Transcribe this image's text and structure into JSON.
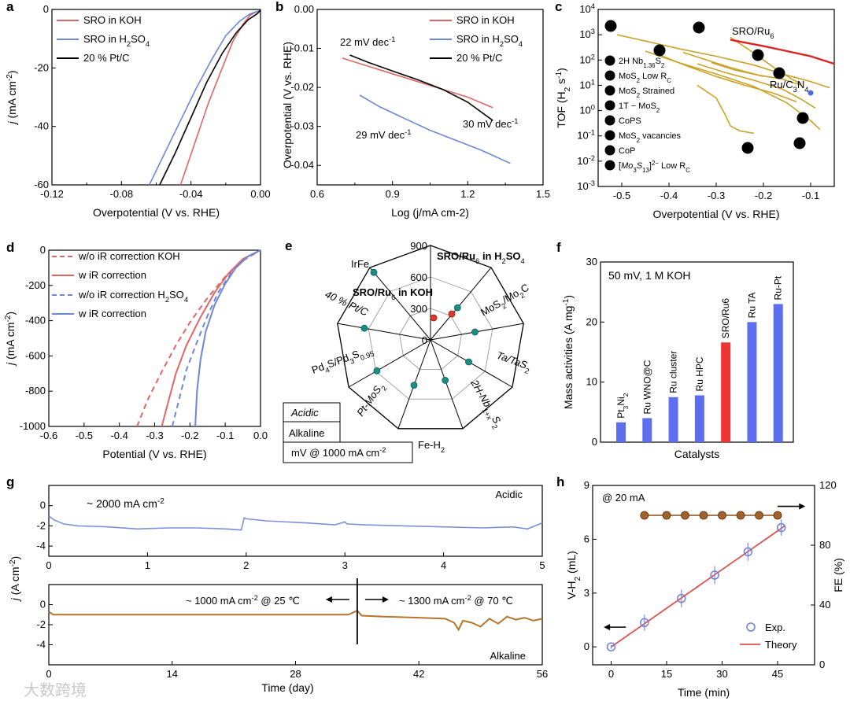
{
  "colors": {
    "red": "#e06666",
    "blue": "#6f86d6",
    "black": "#000000",
    "gold": "#c9a227",
    "teal": "#1a8f85",
    "bar_blue": "#5c6ff0",
    "bar_red": "#ee3333",
    "brown": "#b8732a",
    "bead": "#8a4b18"
  },
  "watermark": "大数跨境",
  "chart_data": [
    {
      "id": "a",
      "panel_label": "a",
      "type": "line",
      "xlabel": "Overpotential (V vs. RHE)",
      "ylabel": "j (mA cm-2)",
      "xlim": [
        -0.12,
        0
      ],
      "ylim": [
        -60,
        0
      ],
      "xticks": [
        "-0.12",
        "-0.08",
        "-0.04",
        "0.00"
      ],
      "yticks": [
        "0",
        "-20",
        "-40",
        "-60"
      ],
      "series": [
        {
          "name": "SRO in KOH",
          "color": "#e06666",
          "x": [
            -0.046,
            -0.038,
            -0.03,
            -0.022,
            -0.016,
            -0.01,
            -0.006,
            -0.003,
            0
          ],
          "y": [
            -60,
            -46,
            -32,
            -20,
            -11,
            -5,
            -2,
            -1,
            -0.3
          ]
        },
        {
          "name": "SRO in H2SO4",
          "color": "#6f86d6",
          "x": [
            -0.064,
            -0.055,
            -0.046,
            -0.037,
            -0.028,
            -0.02,
            -0.012,
            -0.006,
            0
          ],
          "y": [
            -60,
            -49,
            -38,
            -27,
            -17,
            -9,
            -4,
            -1.5,
            -0.3
          ]
        },
        {
          "name": "20 % Pt/C",
          "color": "#000000",
          "x": [
            -0.058,
            -0.049,
            -0.04,
            -0.031,
            -0.022,
            -0.014,
            -0.007,
            -0.002,
            0
          ],
          "y": [
            -60,
            -49,
            -37,
            -25,
            -15,
            -8,
            -3.5,
            -1.5,
            -0.3
          ]
        }
      ]
    },
    {
      "id": "b",
      "panel_label": "b",
      "type": "line",
      "xlabel": "Log (j/mA cm-2)",
      "ylabel": "Overpotential (V vs. RHE)",
      "xlim": [
        0.6,
        1.5
      ],
      "ylim": [
        -0.045,
        0
      ],
      "xticks": [
        "0.6",
        "0.9",
        "1.2",
        "1.5"
      ],
      "yticks": [
        "0.00",
        "-0.01",
        "-0.02",
        "-0.03",
        "-0.04"
      ],
      "annotations": [
        "22 mV dec-1",
        "29 mV dec-1",
        "30 mV dec-1"
      ],
      "series": [
        {
          "name": "SRO in KOH",
          "color": "#e06666",
          "x": [
            0.7,
            0.8,
            0.9,
            1.0,
            1.1,
            1.2,
            1.3
          ],
          "y": [
            -0.0125,
            -0.0145,
            -0.0165,
            -0.0185,
            -0.0205,
            -0.0225,
            -0.0252
          ]
        },
        {
          "name": "SRO in H2SO4",
          "color": "#6f86d6",
          "x": [
            0.77,
            0.85,
            0.95,
            1.05,
            1.15,
            1.25,
            1.37
          ],
          "y": [
            -0.022,
            -0.025,
            -0.028,
            -0.031,
            -0.0335,
            -0.036,
            -0.0395
          ]
        },
        {
          "name": "20 % Pt/C",
          "color": "#000000",
          "x": [
            0.73,
            0.8,
            0.9,
            1.0,
            1.1,
            1.2,
            1.3
          ],
          "y": [
            -0.0117,
            -0.0135,
            -0.0158,
            -0.018,
            -0.0205,
            -0.0238,
            -0.0285
          ]
        }
      ]
    },
    {
      "id": "c",
      "panel_label": "c",
      "type": "line",
      "xlabel": "Overpotential (V vs. RHE)",
      "ylabel": "TOF (H2 s-1)",
      "xlim": [
        -0.55,
        -0.05
      ],
      "ylim_log10": [
        -3,
        4
      ],
      "yscale": "log",
      "xticks": [
        "-0.5",
        "-0.4",
        "-0.3",
        "-0.2",
        "-0.1"
      ],
      "yticks": [
        "10^4",
        "10^3",
        "10^2",
        "10^1",
        "10^0",
        "10^-1",
        "10^-2",
        "10^-3"
      ],
      "highlight": {
        "name": "SRO/Ru6",
        "color": "#dd2222",
        "x": [
          -0.27,
          -0.2,
          -0.15,
          -0.1,
          -0.05
        ],
        "log10y": [
          2.8,
          2.55,
          2.35,
          2.15,
          1.85
        ]
      },
      "point": {
        "name": "Ru/C3N4",
        "x": -0.1,
        "log10y": 0.7
      },
      "references": [
        {
          "id": "1",
          "text": "2H Nb1.36S2",
          "x": [
            -0.51,
            -0.45,
            -0.38,
            -0.3,
            -0.22,
            -0.16,
            -0.1,
            -0.06
          ],
          "log10y": [
            3.0,
            2.75,
            2.45,
            2.15,
            1.8,
            1.45,
            1.15,
            0.9
          ]
        },
        {
          "id": "2",
          "text": "MoS2 Low RC",
          "x": [
            -0.27,
            -0.23,
            -0.2,
            -0.17,
            -0.14,
            -0.12
          ],
          "log10y": [
            2.9,
            2.4,
            2.0,
            1.6,
            1.25,
            1.05
          ]
        },
        {
          "id": "3",
          "text": "MoS2 Strained",
          "x": [
            -0.37,
            -0.32,
            -0.27,
            -0.23,
            -0.2
          ],
          "log10y": [
            2.3,
            2.0,
            1.7,
            1.5,
            1.35
          ]
        },
        {
          "id": "4",
          "text": "1T - MoS2",
          "x": [
            -0.31,
            -0.26,
            -0.21,
            -0.16,
            -0.12
          ],
          "log10y": [
            1.9,
            1.6,
            1.4,
            1.25,
            1.0
          ]
        },
        {
          "id": "5",
          "text": "CoPS",
          "x": [
            -0.42,
            -0.36,
            -0.3,
            -0.24,
            -0.18,
            -0.13
          ],
          "log10y": [
            2.2,
            1.75,
            1.35,
            1.0,
            0.7,
            0.35
          ]
        },
        {
          "id": "6",
          "text": "MoS2 vacancies",
          "x": [
            -0.34,
            -0.28,
            -0.22,
            -0.16,
            -0.12,
            -0.09
          ],
          "log10y": [
            1.85,
            1.5,
            1.2,
            0.85,
            0.45,
            0.1
          ]
        },
        {
          "id": "7",
          "text": "CoP",
          "x": [
            -0.45,
            -0.38,
            -0.3,
            -0.22,
            -0.15,
            -0.1,
            -0.08
          ],
          "log10y": [
            2.35,
            1.9,
            1.45,
            0.95,
            0.3,
            -0.4,
            -0.75
          ]
        },
        {
          "id": "8",
          "text": "[Mo3S13]2- Low RC",
          "x": [
            -0.34,
            -0.3,
            -0.28,
            -0.27,
            -0.25,
            -0.22
          ],
          "log10y": [
            1.0,
            0.5,
            -0.2,
            -0.6,
            -0.8,
            -0.9
          ]
        }
      ]
    },
    {
      "id": "d",
      "panel_label": "d",
      "type": "line",
      "xlabel": "Potential (V vs. RHE)",
      "ylabel": "j (mA cm-2)",
      "xlim": [
        -0.6,
        0
      ],
      "ylim": [
        -1000,
        0
      ],
      "xticks": [
        "-0.6",
        "-0.5",
        "-0.4",
        "-0.3",
        "-0.2",
        "-0.1",
        "0.0"
      ],
      "yticks": [
        "0",
        "-200",
        "-400",
        "-600",
        "-800",
        "-1000"
      ],
      "series": [
        {
          "name": "w/o iR correction  KOH",
          "color": "#e06666",
          "dashed": true,
          "x": [
            -0.35,
            -0.32,
            -0.28,
            -0.24,
            -0.2,
            -0.15,
            -0.1,
            -0.05,
            0
          ],
          "y": [
            -1000,
            -850,
            -690,
            -540,
            -410,
            -270,
            -150,
            -60,
            0
          ]
        },
        {
          "name": "w iR correction",
          "color": "#e06666",
          "dashed": false,
          "x": [
            -0.28,
            -0.26,
            -0.24,
            -0.21,
            -0.17,
            -0.13,
            -0.09,
            -0.05,
            0
          ],
          "y": [
            -1000,
            -850,
            -700,
            -540,
            -380,
            -240,
            -130,
            -50,
            0
          ]
        },
        {
          "name": "w/o iR correction H2SO4",
          "color": "#6f86d6",
          "dashed": true,
          "x": [
            -0.25,
            -0.23,
            -0.21,
            -0.18,
            -0.15,
            -0.12,
            -0.08,
            -0.04,
            0
          ],
          "y": [
            -1000,
            -840,
            -680,
            -520,
            -370,
            -240,
            -120,
            -40,
            0
          ]
        },
        {
          "name": "w iR correction",
          "color": "#6f86d6",
          "dashed": false,
          "x": [
            -0.185,
            -0.18,
            -0.17,
            -0.155,
            -0.13,
            -0.1,
            -0.07,
            -0.035,
            0
          ],
          "y": [
            -1000,
            -800,
            -620,
            -460,
            -310,
            -190,
            -100,
            -35,
            0
          ]
        }
      ]
    },
    {
      "id": "e",
      "panel_label": "e",
      "type": "radar",
      "rings": [
        0,
        300,
        600,
        900
      ],
      "ring_labels": [
        "0",
        "300",
        "600",
        "900"
      ],
      "axes": [
        "SRO/Ru6 in H2SO4",
        "MoS2/Mo2C",
        "Ta/TaS2",
        "2H-Nb1+xS2",
        "Fe-H2",
        "Pt-MoS2",
        "Pd4S/Pd3S0.95",
        "40 % Pt/C",
        "IrFe"
      ],
      "center_label": "SRO/Ru6 in KOH",
      "acidic_values": [
        null,
        400,
        430,
        420,
        410,
        460,
        590,
        640,
        840
      ],
      "alkaline_values": [
        240,
        235
      ],
      "legend_box": [
        "Acidic",
        "Alkaline",
        "mV @ 1000 mA cm-2"
      ]
    },
    {
      "id": "f",
      "panel_label": "f",
      "type": "bar",
      "xlabel": "Catalysts",
      "ylabel": "Mass activities (A mg-1)",
      "ylim": [
        0,
        30
      ],
      "yticks": [
        "0",
        "10",
        "20",
        "30"
      ],
      "annotation": "50 mV, 1 M KOH",
      "categories": [
        "Pt3Ni2",
        "Ru WNO@C",
        "Ru cluster",
        "Ru HPC",
        "SRO/Ru6",
        "Ru TA",
        "Ru-Pt"
      ],
      "values": [
        3.3,
        4.0,
        7.5,
        7.8,
        16.6,
        20.0,
        23.0
      ],
      "highlight_index": 4
    },
    {
      "id": "g",
      "panel_label": "g",
      "type": "line",
      "ylabel": "j (A cm-2)",
      "xlabel": "Time (day)",
      "top": {
        "label": "Acidic",
        "annotation": "~ 2000 mA cm-2",
        "xlim": [
          0,
          5
        ],
        "ylim": [
          -5,
          2
        ],
        "xticks": [
          "0",
          "1",
          "2",
          "3",
          "4",
          "5"
        ],
        "yticks": [
          "0",
          "-2",
          "-4"
        ],
        "x": [
          0,
          0.05,
          0.15,
          0.3,
          0.6,
          0.9,
          1.2,
          1.5,
          1.8,
          1.95,
          1.98,
          2.0,
          2.2,
          2.6,
          2.9,
          3.0,
          3.02,
          3.2,
          3.6,
          4.0,
          4.4,
          4.7,
          4.85,
          5.0
        ],
        "y": [
          -1.0,
          -1.4,
          -1.8,
          -2.0,
          -2.1,
          -2.3,
          -2.2,
          -2.2,
          -2.3,
          -2.4,
          -1.2,
          -1.3,
          -1.5,
          -1.7,
          -1.9,
          -1.6,
          -1.8,
          -1.9,
          -2.0,
          -2.1,
          -2.2,
          -2.1,
          -2.3,
          -1.7
        ]
      },
      "bottom": {
        "label": "Alkaline",
        "ann_left": "~ 1000 mA cm-2 @ 25 ℃",
        "ann_right": "~ 1300 mA cm-2 @ 70 ℃",
        "xlim": [
          0,
          56
        ],
        "ylim": [
          -6,
          2
        ],
        "xticks": [
          "0",
          "14",
          "28",
          "42",
          "56"
        ],
        "yticks": [
          "0",
          "-2",
          "-4"
        ],
        "x": [
          0,
          0.5,
          3,
          8,
          14,
          20,
          26,
          30,
          34,
          35,
          35.5,
          38,
          42,
          45,
          46,
          46.5,
          47,
          48,
          49,
          50,
          51,
          52,
          53,
          54,
          55,
          56
        ],
        "y": [
          -0.7,
          -1.0,
          -1.0,
          -1.0,
          -1.0,
          -1.0,
          -1.0,
          -1.0,
          -1.0,
          -0.6,
          -1.1,
          -1.2,
          -1.3,
          -1.4,
          -1.8,
          -2.5,
          -1.6,
          -1.8,
          -2.2,
          -1.4,
          -1.9,
          -1.2,
          -1.5,
          -1.3,
          -1.6,
          -1.4
        ]
      }
    },
    {
      "id": "h",
      "panel_label": "h",
      "type": "scatter",
      "xlabel": "Time (min)",
      "ylabel": "V-H2 (mL)",
      "ylabel_right": "FE (%)",
      "xlim": [
        -5,
        55
      ],
      "ylim": [
        -1,
        9
      ],
      "ylim_right": [
        0,
        120
      ],
      "xticks": [
        "0",
        "15",
        "30",
        "45"
      ],
      "yticks": [
        "0",
        "3",
        "6",
        "9"
      ],
      "yticks_right": [
        "0",
        "40",
        "80",
        "120"
      ],
      "annotation": "@ 20 mA",
      "exp_x": [
        0,
        9,
        19,
        28,
        37,
        46
      ],
      "exp_y": [
        0,
        1.35,
        2.7,
        4.0,
        5.3,
        6.65
      ],
      "exp_err": [
        0.1,
        0.45,
        0.5,
        0.5,
        0.5,
        0.45
      ],
      "theory_x": [
        0,
        47
      ],
      "theory_y": [
        0,
        6.75
      ],
      "fe_x": [
        9,
        15,
        20,
        25,
        30,
        35,
        40,
        45
      ],
      "fe": [
        100,
        100,
        100,
        100,
        100,
        100,
        100,
        100
      ],
      "legend": [
        "Exp.",
        "Theory"
      ]
    }
  ]
}
